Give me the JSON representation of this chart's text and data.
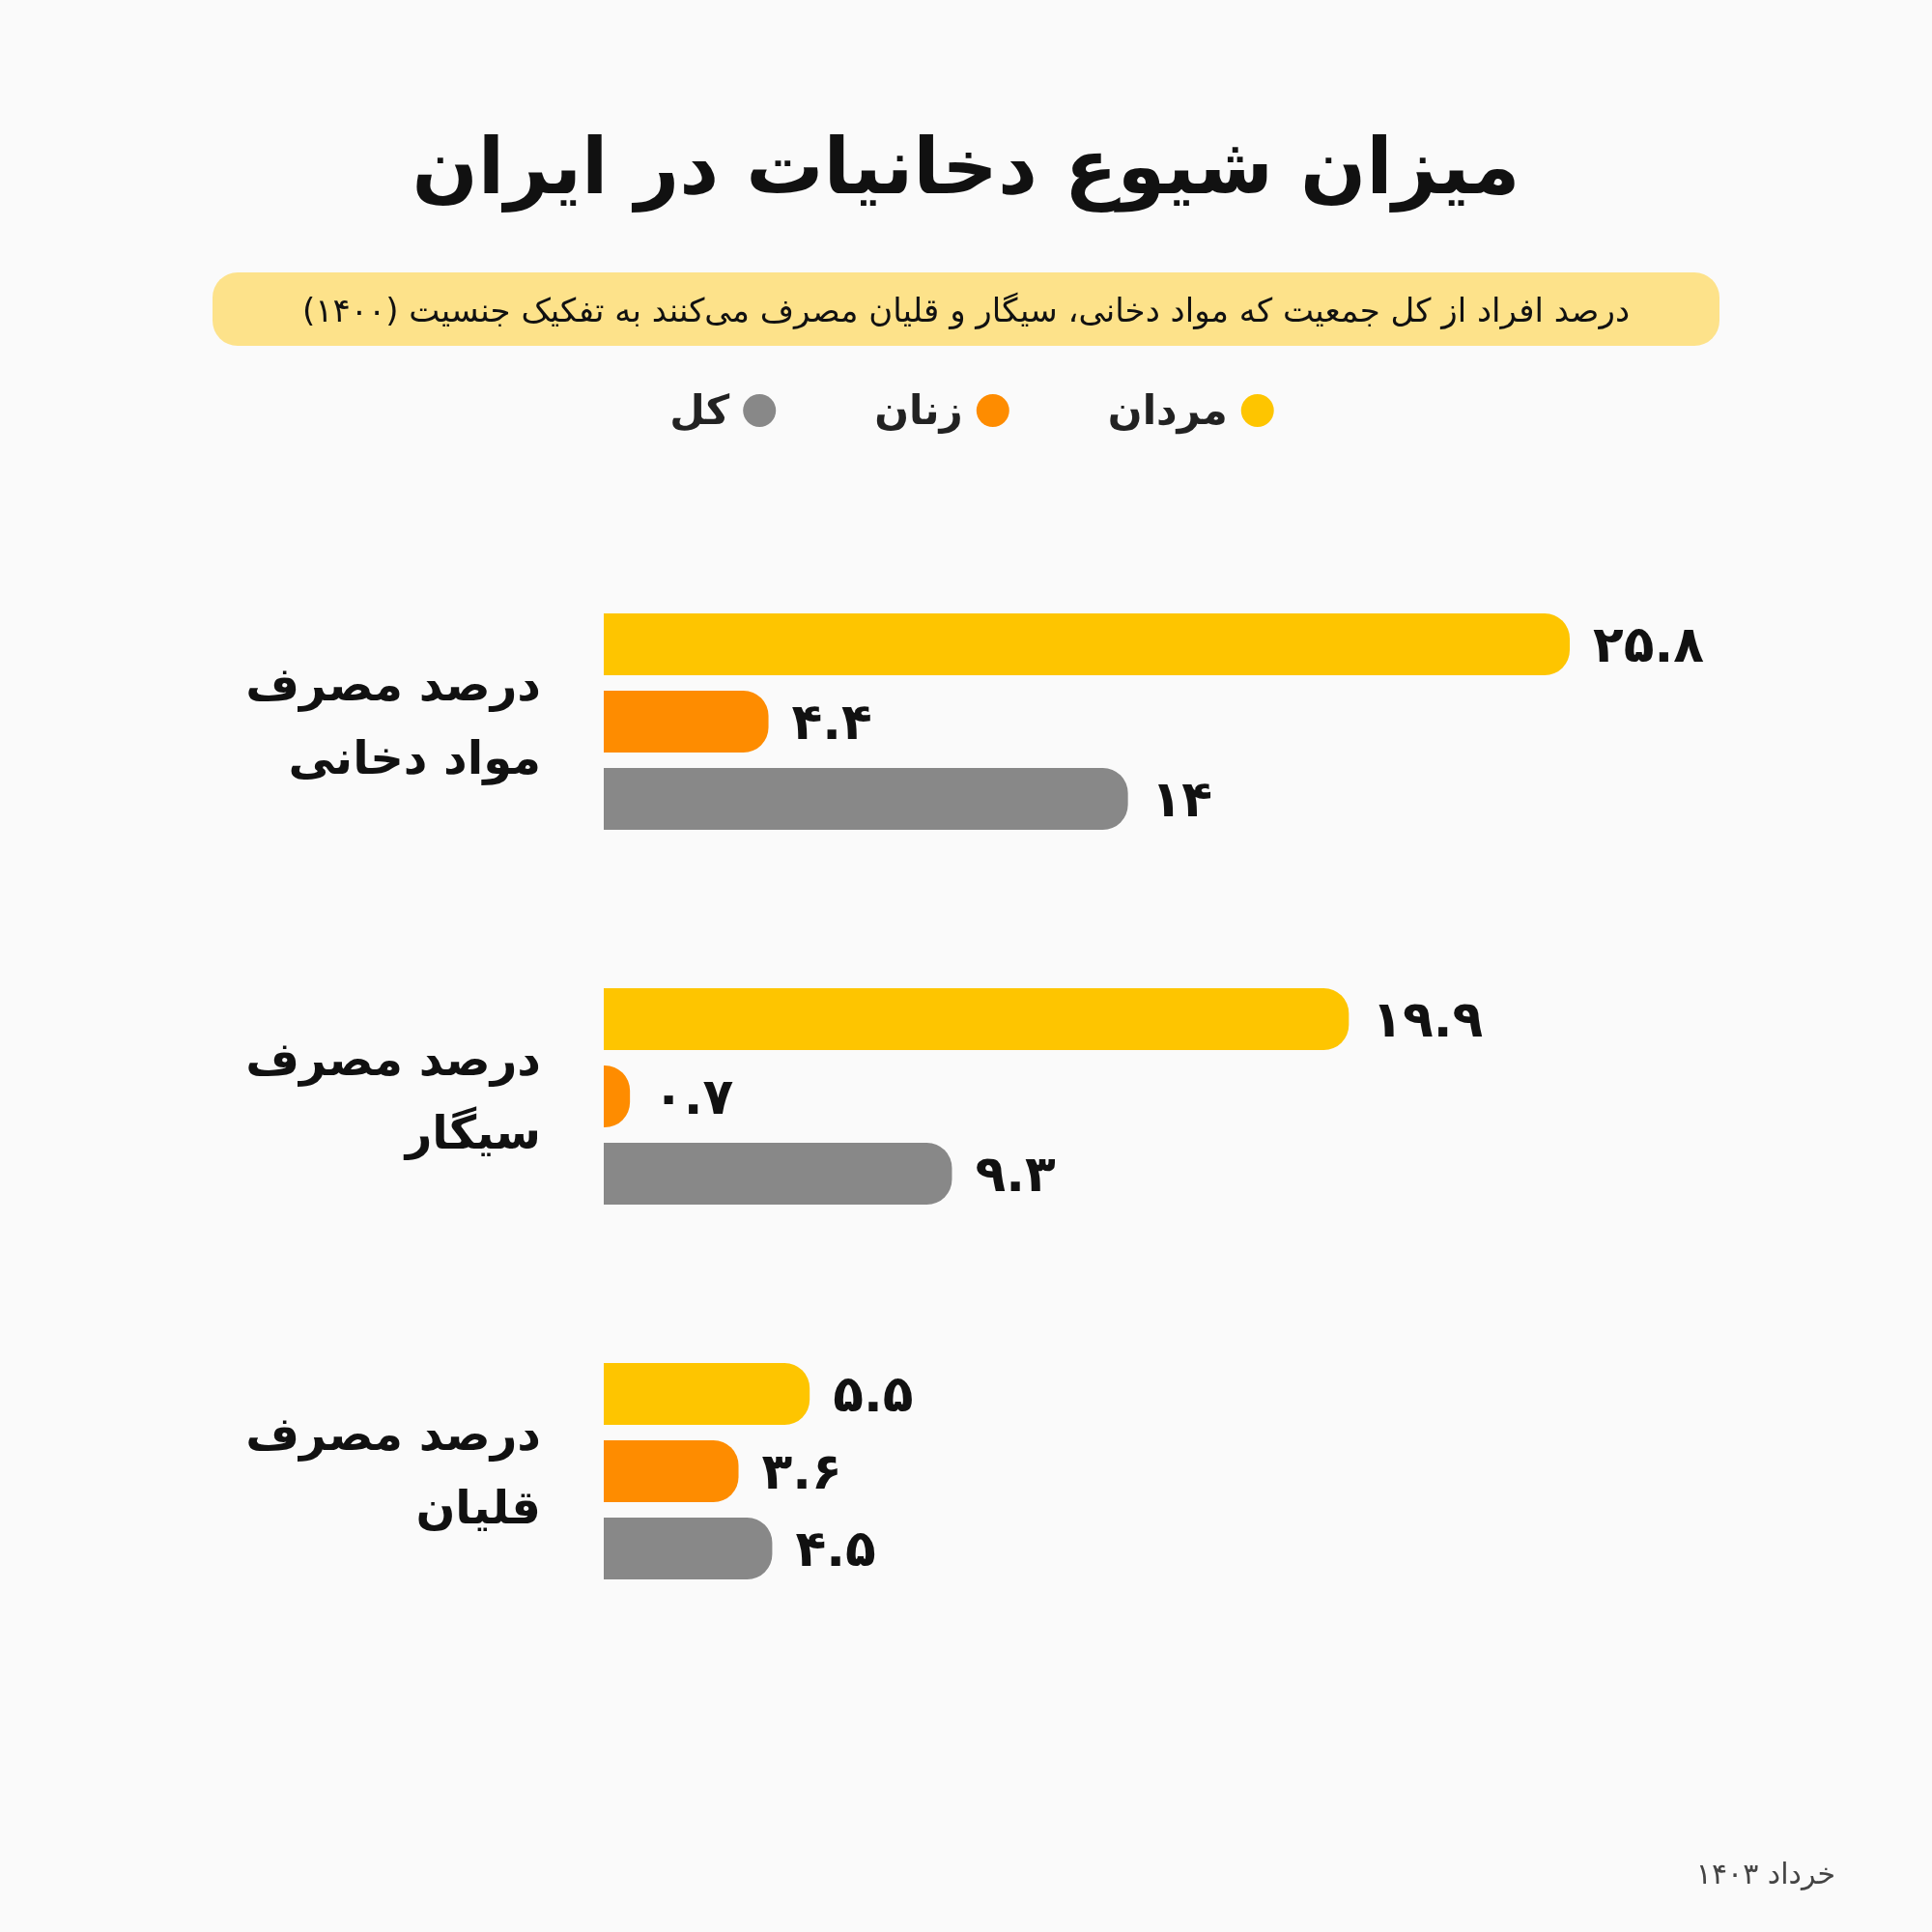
{
  "chart_data": {
    "type": "bar",
    "orientation": "horizontal",
    "title": "میزان شیوع دخانیات در ایران",
    "subtitle": "درصد افراد از کل جمعیت که مواد دخانی، سیگار و قلیان مصرف می‌کنند به تفکیک جنسیت (۱۴۰۰)",
    "categories": [
      "درصد مصرف مواد دخانی",
      "درصد مصرف سیگار",
      "درصد مصرف قلیان"
    ],
    "series": [
      {
        "name": "مردان",
        "color": "#fec500",
        "values": [
          25.8,
          19.9,
          5.5
        ],
        "value_labels": [
          "۲۵.۸",
          "۱۹.۹",
          "۵.۵"
        ]
      },
      {
        "name": "زنان",
        "color": "#fe8c00",
        "values": [
          4.4,
          0.7,
          3.6
        ],
        "value_labels": [
          "۴.۴",
          "۰.۷",
          "۳.۶"
        ]
      },
      {
        "name": "کل",
        "color": "#888888",
        "values": [
          14,
          9.3,
          4.5
        ],
        "value_labels": [
          "۱۴",
          "۹.۳",
          "۴.۵"
        ]
      }
    ],
    "legend": "top",
    "annotations": [
      "خرداد ۱۴۰۳"
    ]
  }
}
